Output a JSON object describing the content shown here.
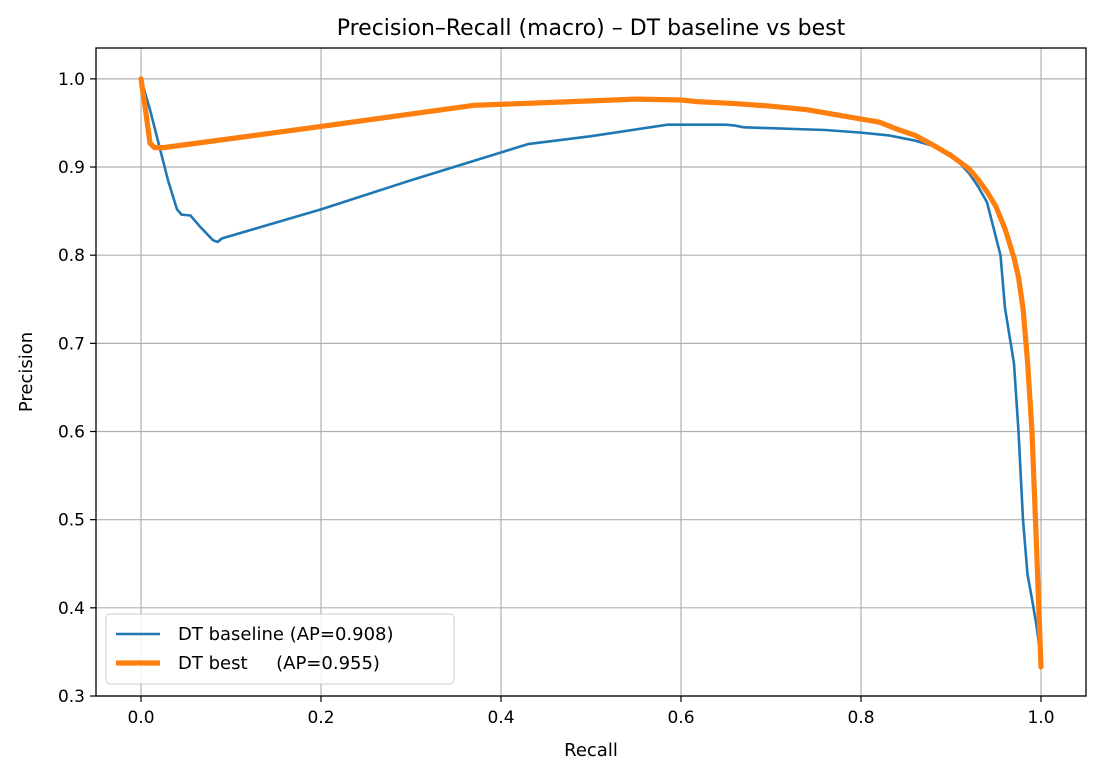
{
  "chart_data": {
    "type": "line",
    "title": "Precision–Recall (macro) – DT baseline vs best",
    "xlabel": "Recall",
    "ylabel": "Precision",
    "xlim": [
      -0.05,
      1.05
    ],
    "ylim": [
      0.3,
      1.035
    ],
    "xticks": [
      0.0,
      0.2,
      0.4,
      0.6,
      0.8,
      1.0
    ],
    "xtick_labels": [
      "0.0",
      "0.2",
      "0.4",
      "0.6",
      "0.8",
      "1.0"
    ],
    "yticks": [
      0.3,
      0.4,
      0.5,
      0.6,
      0.7,
      0.8,
      0.9,
      1.0
    ],
    "ytick_labels": [
      "0.3",
      "0.4",
      "0.5",
      "0.6",
      "0.7",
      "0.8",
      "0.9",
      "1.0"
    ],
    "grid": true,
    "legend_position": "lower-left",
    "series": [
      {
        "name": "DT baseline (AP=0.908)",
        "color": "#1f77b4",
        "line_width": "thin",
        "points": [
          [
            0.0,
            1.0
          ],
          [
            0.01,
            0.965
          ],
          [
            0.02,
            0.925
          ],
          [
            0.03,
            0.885
          ],
          [
            0.04,
            0.852
          ],
          [
            0.045,
            0.846
          ],
          [
            0.055,
            0.845
          ],
          [
            0.065,
            0.833
          ],
          [
            0.08,
            0.817
          ],
          [
            0.085,
            0.815
          ],
          [
            0.09,
            0.819
          ],
          [
            0.2,
            0.852
          ],
          [
            0.3,
            0.885
          ],
          [
            0.43,
            0.926
          ],
          [
            0.5,
            0.935
          ],
          [
            0.585,
            0.948
          ],
          [
            0.65,
            0.948
          ],
          [
            0.66,
            0.947
          ],
          [
            0.67,
            0.945
          ],
          [
            0.7,
            0.944
          ],
          [
            0.76,
            0.942
          ],
          [
            0.8,
            0.939
          ],
          [
            0.83,
            0.936
          ],
          [
            0.86,
            0.93
          ],
          [
            0.88,
            0.924
          ],
          [
            0.9,
            0.915
          ],
          [
            0.92,
            0.893
          ],
          [
            0.93,
            0.878
          ],
          [
            0.94,
            0.86
          ],
          [
            0.95,
            0.82
          ],
          [
            0.955,
            0.8
          ],
          [
            0.96,
            0.74
          ],
          [
            0.97,
            0.677
          ],
          [
            0.975,
            0.6
          ],
          [
            0.98,
            0.5
          ],
          [
            0.985,
            0.438
          ],
          [
            0.99,
            0.41
          ],
          [
            0.995,
            0.38
          ],
          [
            1.0,
            0.34
          ]
        ]
      },
      {
        "name": "DT best     (AP=0.955)",
        "color": "#ff7f0e",
        "line_width": "thick",
        "points": [
          [
            0.0,
            1.0
          ],
          [
            0.005,
            0.965
          ],
          [
            0.01,
            0.927
          ],
          [
            0.015,
            0.922
          ],
          [
            0.025,
            0.922
          ],
          [
            0.2,
            0.946
          ],
          [
            0.37,
            0.97
          ],
          [
            0.45,
            0.973
          ],
          [
            0.55,
            0.977
          ],
          [
            0.6,
            0.976
          ],
          [
            0.62,
            0.974
          ],
          [
            0.66,
            0.972
          ],
          [
            0.7,
            0.969
          ],
          [
            0.74,
            0.965
          ],
          [
            0.78,
            0.958
          ],
          [
            0.82,
            0.951
          ],
          [
            0.84,
            0.943
          ],
          [
            0.86,
            0.936
          ],
          [
            0.88,
            0.925
          ],
          [
            0.9,
            0.913
          ],
          [
            0.92,
            0.898
          ],
          [
            0.93,
            0.886
          ],
          [
            0.94,
            0.872
          ],
          [
            0.95,
            0.855
          ],
          [
            0.96,
            0.83
          ],
          [
            0.97,
            0.797
          ],
          [
            0.975,
            0.775
          ],
          [
            0.98,
            0.74
          ],
          [
            0.985,
            0.68
          ],
          [
            0.99,
            0.6
          ],
          [
            0.995,
            0.47
          ],
          [
            1.0,
            0.333
          ]
        ]
      }
    ]
  }
}
